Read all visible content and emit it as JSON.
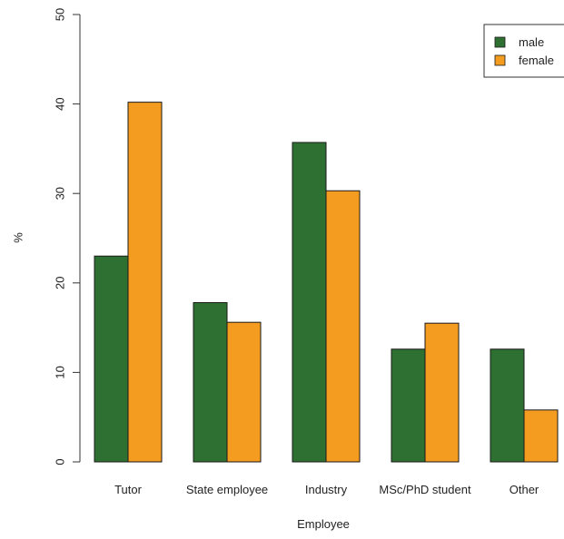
{
  "chart_data": {
    "type": "bar",
    "title": "",
    "xlabel": "Employee",
    "ylabel": "%",
    "ylim": [
      0,
      50
    ],
    "yticks": [
      "0",
      "10",
      "20",
      "30",
      "40",
      "50"
    ],
    "categories": [
      "Tutor",
      "State employee",
      "Industry",
      "MSc/PhD student",
      "Other"
    ],
    "series": [
      {
        "name": "male",
        "color": "#2e7031",
        "values": [
          23.0,
          17.8,
          35.7,
          12.6,
          12.6
        ]
      },
      {
        "name": "female",
        "color": "#f39c1f",
        "values": [
          40.2,
          15.6,
          30.3,
          15.5,
          5.8
        ]
      }
    ],
    "grid": false,
    "legend_position": "top-right"
  }
}
